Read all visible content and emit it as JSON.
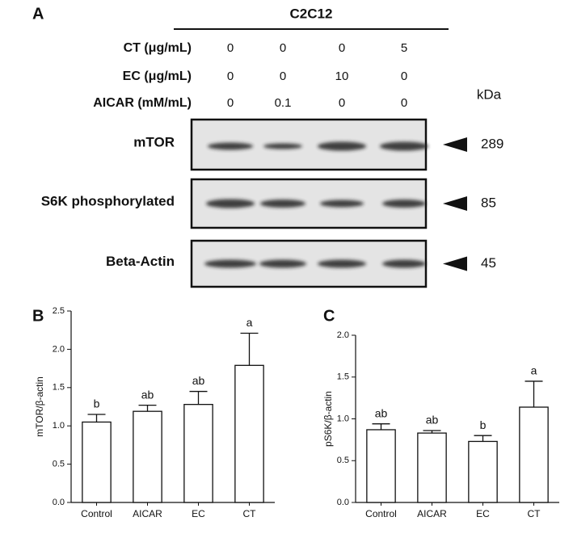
{
  "panel_a": {
    "label": "A",
    "cell_line": "C2C12",
    "treatments": [
      {
        "label": "CT (μg/mL)",
        "values": [
          "0",
          "0",
          "0",
          "5"
        ]
      },
      {
        "label": "EC (μg/mL)",
        "values": [
          "0",
          "0",
          "10",
          "0"
        ]
      },
      {
        "label": "AICAR  (mM/mL)",
        "values": [
          "0",
          "0.1",
          "0",
          "0"
        ]
      }
    ],
    "unit_label": "kDa",
    "bands": [
      {
        "name": "mTOR",
        "kda": "289"
      },
      {
        "name": "S6K phosphorylated",
        "kda": "85"
      },
      {
        "name": "Beta-Actin",
        "kda": "45"
      }
    ]
  },
  "chart_data": [
    {
      "panel": "B",
      "type": "bar",
      "ylabel": "mTOR/β-actin",
      "categories": [
        "Control",
        "AICAR",
        "EC",
        "CT"
      ],
      "values": [
        1.05,
        1.19,
        1.28,
        1.79
      ],
      "errors": [
        0.1,
        0.08,
        0.17,
        0.42
      ],
      "annotations": [
        "b",
        "ab",
        "ab",
        "a"
      ],
      "color": "#ffffff",
      "ylim": [
        0,
        2.5
      ],
      "yticks": [
        {
          "value": 0,
          "label": "0.0"
        },
        {
          "value": 0.5,
          "label": "0.5"
        },
        {
          "value": 1,
          "label": "1.0"
        },
        {
          "value": 1.5,
          "label": "1.5"
        },
        {
          "value": 2,
          "label": "2.0"
        },
        {
          "value": 2.5,
          "label": "2.5"
        }
      ]
    },
    {
      "panel": "C",
      "type": "bar",
      "ylabel": "pS6K/β-actin",
      "categories": [
        "Control",
        "AICAR",
        "EC",
        "CT"
      ],
      "values": [
        0.87,
        0.83,
        0.73,
        1.14
      ],
      "errors": [
        0.07,
        0.03,
        0.07,
        0.31
      ],
      "annotations": [
        "ab",
        "ab",
        "b",
        "a"
      ],
      "color": "#ffffff",
      "ylim": [
        0,
        2
      ],
      "yticks": [
        {
          "value": 0,
          "label": "0.0"
        },
        {
          "value": 0.5,
          "label": "0.5"
        },
        {
          "value": 1,
          "label": "1.0"
        },
        {
          "value": 1.5,
          "label": "1.5"
        },
        {
          "value": 2,
          "label": "2.0"
        }
      ]
    }
  ]
}
